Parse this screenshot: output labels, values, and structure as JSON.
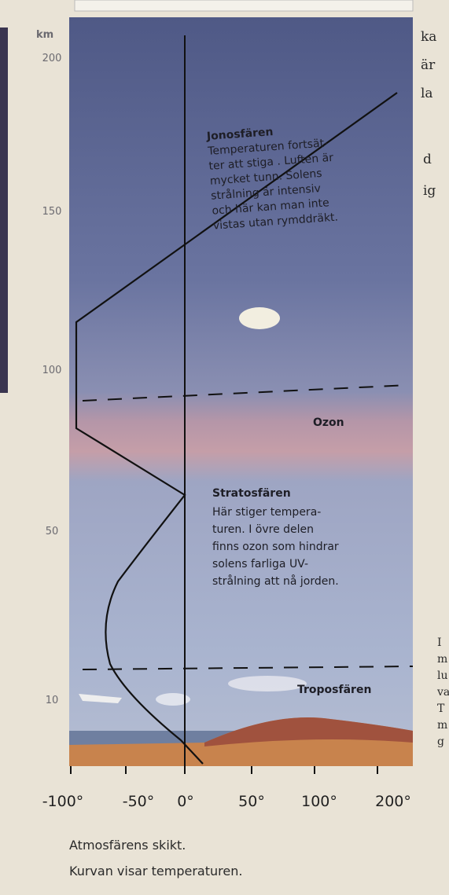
{
  "axis_unit": "km",
  "height_labels": [
    "200",
    "150",
    "100",
    "50",
    "10"
  ],
  "temperature_labels": [
    "-100°",
    "-50°",
    "0°",
    "50°",
    "100°",
    "200°"
  ],
  "ionosphere": {
    "title": "Jonosfären",
    "lines": [
      "Temperaturen fortsät-",
      "ter att stiga . Luften är",
      "mycket tunn. Solens",
      "strålning är intensiv",
      "och här kan man inte",
      "vistas utan rymddräkt."
    ]
  },
  "ozone": "Ozon",
  "stratosphere": {
    "title": "Stratosfären",
    "lines": [
      "Här stiger tempera-",
      "turen. I övre delen",
      "finns ozon som hindrar",
      "solens farliga UV-",
      "strålning att nå jorden."
    ]
  },
  "troposphere": "Troposfären",
  "caption": [
    "Atmosfärens skikt.",
    "Kurvan visar temperaturen."
  ],
  "side_text_top": [
    "ka",
    "är",
    "la",
    "d",
    "ig"
  ],
  "side_text_bottom": [
    "I",
    "m",
    "lu",
    "va",
    "T",
    "m",
    "g"
  ]
}
